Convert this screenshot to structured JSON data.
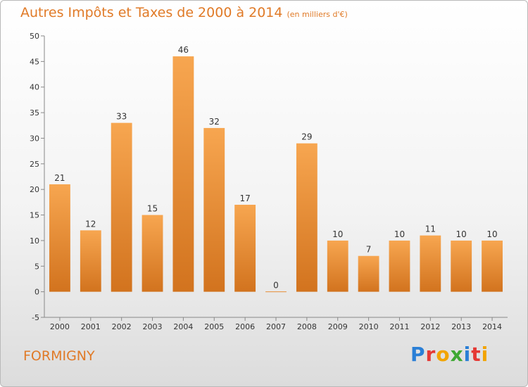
{
  "header": {
    "title": "Autres Impôts et Taxes de 2000 à 2014",
    "subtitle": "(en milliers d'€)"
  },
  "footer": {
    "commune": "FORMIGNY",
    "brand_letters": [
      "P",
      "r",
      "o",
      "x",
      "i",
      "t",
      "i"
    ],
    "brand_colors": [
      "#2a7fd6",
      "#e53935",
      "#f2a400",
      "#3ea833",
      "#2a7fd6",
      "#e53935",
      "#f2a400"
    ]
  },
  "chart_data": {
    "type": "bar",
    "categories": [
      "2000",
      "2001",
      "2002",
      "2003",
      "2004",
      "2005",
      "2006",
      "2007",
      "2008",
      "2009",
      "2010",
      "2011",
      "2012",
      "2013",
      "2014"
    ],
    "values": [
      21,
      12,
      33,
      15,
      46,
      32,
      17,
      0,
      29,
      10,
      7,
      10,
      11,
      10,
      10
    ],
    "title": "Autres Impôts et Taxes de 2000 à 2014",
    "subtitle": "(en milliers d'€)",
    "ylim": [
      -5,
      50
    ],
    "yticks": [
      -5,
      0,
      5,
      10,
      15,
      20,
      25,
      30,
      35,
      40,
      45,
      50
    ],
    "grid": false,
    "bar_color_light": "#f7a650",
    "bar_color_dark": "#d2731e",
    "axis_color": "#888888"
  }
}
